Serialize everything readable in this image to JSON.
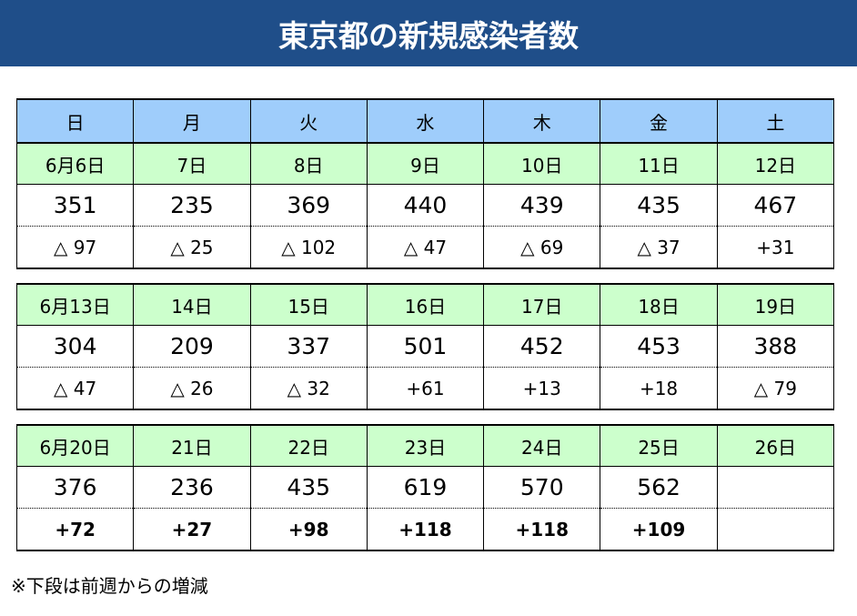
{
  "header": {
    "title": "東京都の新規感染者数"
  },
  "table": {
    "weekdays": [
      "日",
      "月",
      "火",
      "水",
      "木",
      "金",
      "土"
    ],
    "weeks": [
      {
        "dates": [
          "6月6日",
          "7日",
          "8日",
          "9日",
          "10日",
          "11日",
          "12日"
        ],
        "counts": [
          351,
          235,
          369,
          440,
          439,
          435,
          467
        ],
        "changes": [
          "△ 97",
          "△ 25",
          "△ 102",
          "△ 47",
          "△ 69",
          "△ 37",
          "+31"
        ],
        "bold_changes": false
      },
      {
        "dates": [
          "6月13日",
          "14日",
          "15日",
          "16日",
          "17日",
          "18日",
          "19日"
        ],
        "counts": [
          304,
          209,
          337,
          501,
          452,
          453,
          388
        ],
        "changes": [
          "△ 47",
          "△ 26",
          "△ 32",
          "+61",
          "+13",
          "+18",
          "△ 79"
        ],
        "bold_changes": false
      },
      {
        "dates": [
          "6月20日",
          "21日",
          "22日",
          "23日",
          "24日",
          "25日",
          "26日"
        ],
        "counts": [
          376,
          236,
          435,
          619,
          570,
          562,
          null
        ],
        "changes": [
          "+72",
          "+27",
          "+98",
          "+118",
          "+118",
          "+109",
          null
        ],
        "bold_changes": true
      }
    ]
  },
  "footnote": "※下段は前週からの増減"
}
